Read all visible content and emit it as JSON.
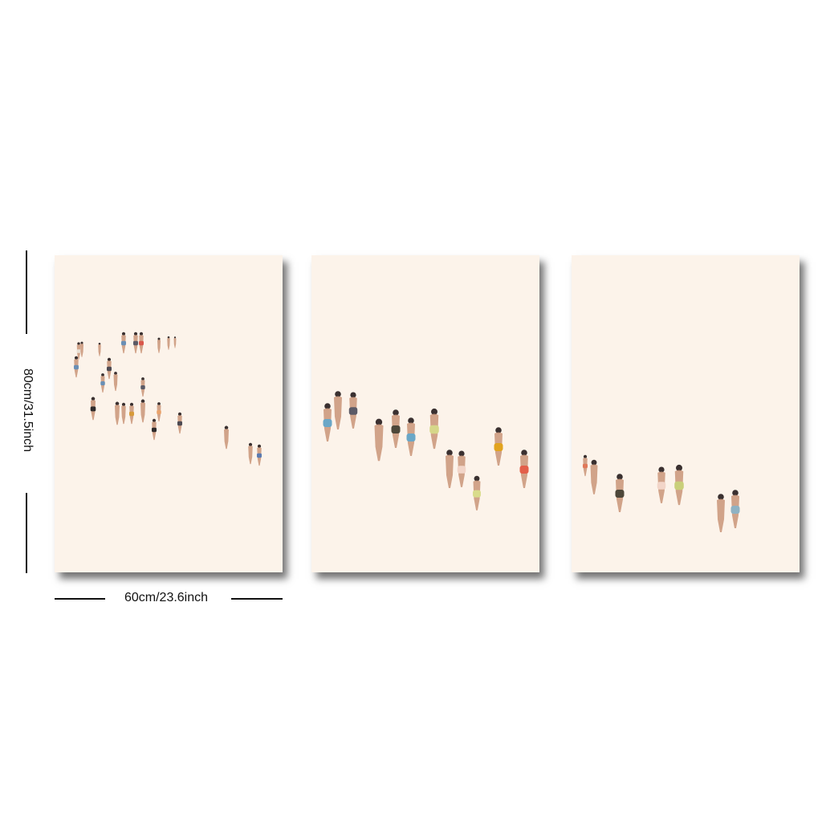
{
  "product": {
    "height_dimension_label": "80cm/31.5inch",
    "width_dimension_label": "60cm/23.6inch",
    "panel_count": 3
  },
  "colors": {
    "background": "#ffffff",
    "canvas": "#fcf3ea",
    "skin": "#c99478",
    "hair": "#3a3030",
    "dimension_line": "#111111"
  }
}
